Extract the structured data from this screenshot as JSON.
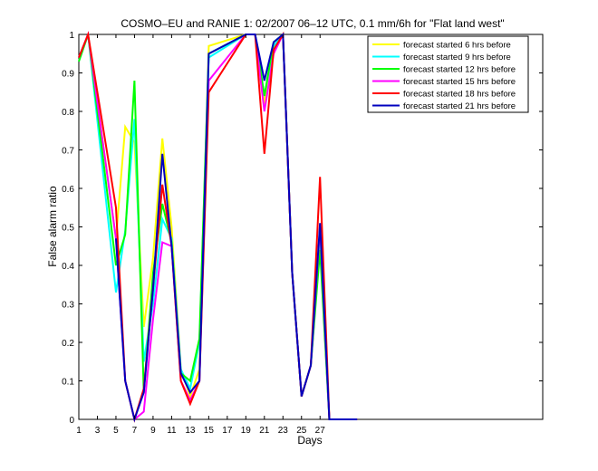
{
  "chart_data": {
    "type": "line",
    "title": "COSMO–EU and RANIE 1: 02/2007 06–12 UTC, 0.1 mm/6h for \"Flat land west\"",
    "xlabel": "Days",
    "ylabel": "False alarm ratio",
    "xlim": [
      1,
      51
    ],
    "ylim": [
      0,
      1
    ],
    "xticks": [
      1,
      3,
      5,
      7,
      9,
      11,
      13,
      15,
      17,
      19,
      21,
      23,
      25,
      27
    ],
    "yticks": [
      0,
      0.1,
      0.2,
      0.3,
      0.4,
      0.5,
      0.6,
      0.7,
      0.8,
      0.9,
      1
    ],
    "ytick_labels": [
      "0",
      "0.1",
      "0.2",
      "0.3",
      "0.4",
      "0.5",
      "0.6",
      "0.7",
      "0.8",
      "0.9",
      "1"
    ],
    "grid": false,
    "legend_position": "top-right",
    "series": [
      {
        "name": "forecast started 6 hrs before",
        "color": "#ffff00",
        "points": [
          [
            1,
            0.93
          ],
          [
            2,
            1.0
          ],
          [
            5,
            0.47
          ],
          [
            6,
            0.76
          ],
          [
            7,
            0.72
          ],
          [
            8,
            0.24
          ],
          [
            9,
            0.42
          ],
          [
            10,
            0.73
          ],
          [
            11,
            0.5
          ],
          [
            12,
            0.13
          ],
          [
            13,
            0.06
          ],
          [
            14,
            0.13
          ],
          [
            15,
            0.97
          ],
          [
            19,
            1.0
          ],
          [
            20,
            1.0
          ],
          [
            21,
            0.82
          ],
          [
            22,
            0.97
          ],
          [
            23,
            1.0
          ],
          [
            24,
            0.38
          ],
          [
            25,
            0.06
          ],
          [
            26,
            0.14
          ],
          [
            27,
            0.47
          ],
          [
            28,
            0.0
          ],
          [
            31,
            0.0
          ]
        ]
      },
      {
        "name": "forecast started 9 hrs before",
        "color": "#00ffff",
        "points": [
          [
            1,
            0.93
          ],
          [
            2,
            1.0
          ],
          [
            5,
            0.33
          ],
          [
            6,
            0.49
          ],
          [
            7,
            0.78
          ],
          [
            8,
            0.15
          ],
          [
            9,
            0.3
          ],
          [
            10,
            0.52
          ],
          [
            11,
            0.47
          ],
          [
            12,
            0.13
          ],
          [
            13,
            0.08
          ],
          [
            14,
            0.2
          ],
          [
            15,
            0.94
          ],
          [
            19,
            1.0
          ],
          [
            20,
            1.0
          ],
          [
            21,
            0.84
          ],
          [
            22,
            0.97
          ],
          [
            23,
            1.0
          ],
          [
            24,
            0.38
          ],
          [
            25,
            0.06
          ],
          [
            26,
            0.14
          ],
          [
            27,
            0.46
          ],
          [
            28,
            0.0
          ],
          [
            31,
            0.0
          ]
        ]
      },
      {
        "name": "forecast started 12 hrs before",
        "color": "#00ff00",
        "points": [
          [
            1,
            0.93
          ],
          [
            2,
            1.0
          ],
          [
            5,
            0.4
          ],
          [
            6,
            0.48
          ],
          [
            7,
            0.88
          ],
          [
            8,
            0.07
          ],
          [
            9,
            0.38
          ],
          [
            10,
            0.56
          ],
          [
            11,
            0.46
          ],
          [
            12,
            0.12
          ],
          [
            13,
            0.1
          ],
          [
            14,
            0.21
          ],
          [
            15,
            0.95
          ],
          [
            19,
            1.0
          ],
          [
            20,
            1.0
          ],
          [
            21,
            0.84
          ],
          [
            22,
            0.98
          ],
          [
            23,
            1.0
          ],
          [
            24,
            0.38
          ],
          [
            25,
            0.06
          ],
          [
            26,
            0.14
          ],
          [
            27,
            0.44
          ],
          [
            28,
            0.0
          ],
          [
            31,
            0.0
          ]
        ]
      },
      {
        "name": "forecast started 15 hrs before",
        "color": "#ff00ff",
        "points": [
          [
            1,
            0.94
          ],
          [
            2,
            1.0
          ],
          [
            5,
            0.47
          ],
          [
            6,
            0.1
          ],
          [
            7,
            0.0
          ],
          [
            8,
            0.02
          ],
          [
            9,
            0.26
          ],
          [
            10,
            0.46
          ],
          [
            11,
            0.45
          ],
          [
            12,
            0.1
          ],
          [
            13,
            0.05
          ],
          [
            14,
            0.1
          ],
          [
            15,
            0.88
          ],
          [
            19,
            1.0
          ],
          [
            20,
            1.0
          ],
          [
            21,
            0.8
          ],
          [
            22,
            0.95
          ],
          [
            23,
            1.0
          ],
          [
            24,
            0.38
          ],
          [
            25,
            0.06
          ],
          [
            26,
            0.14
          ],
          [
            27,
            0.5
          ],
          [
            28,
            0.0
          ],
          [
            31,
            0.0
          ]
        ]
      },
      {
        "name": "forecast started 18 hrs before",
        "color": "#ff0000",
        "points": [
          [
            1,
            0.94
          ],
          [
            2,
            1.0
          ],
          [
            5,
            0.55
          ],
          [
            6,
            0.1
          ],
          [
            7,
            0.0
          ],
          [
            8,
            0.08
          ],
          [
            9,
            0.34
          ],
          [
            10,
            0.61
          ],
          [
            11,
            0.45
          ],
          [
            12,
            0.1
          ],
          [
            13,
            0.04
          ],
          [
            14,
            0.1
          ],
          [
            15,
            0.85
          ],
          [
            19,
            1.0
          ],
          [
            20,
            1.0
          ],
          [
            21,
            0.69
          ],
          [
            22,
            0.96
          ],
          [
            23,
            1.0
          ],
          [
            24,
            0.38
          ],
          [
            25,
            0.06
          ],
          [
            26,
            0.14
          ],
          [
            27,
            0.63
          ],
          [
            28,
            0.0
          ],
          [
            31,
            0.0
          ]
        ]
      },
      {
        "name": "forecast started 21 hrs before",
        "color": "#0000bf",
        "points": [
          [
            5,
            0.47
          ],
          [
            6,
            0.1
          ],
          [
            7,
            0.0
          ],
          [
            8,
            0.07
          ],
          [
            9,
            0.34
          ],
          [
            10,
            0.69
          ],
          [
            11,
            0.45
          ],
          [
            12,
            0.12
          ],
          [
            13,
            0.07
          ],
          [
            14,
            0.1
          ],
          [
            15,
            0.95
          ],
          [
            19,
            1.0
          ],
          [
            20,
            1.0
          ],
          [
            21,
            0.88
          ],
          [
            22,
            0.98
          ],
          [
            23,
            1.0
          ],
          [
            24,
            0.38
          ],
          [
            25,
            0.06
          ],
          [
            26,
            0.14
          ],
          [
            27,
            0.51
          ],
          [
            28,
            0.0
          ],
          [
            31,
            0.0
          ]
        ]
      }
    ]
  }
}
